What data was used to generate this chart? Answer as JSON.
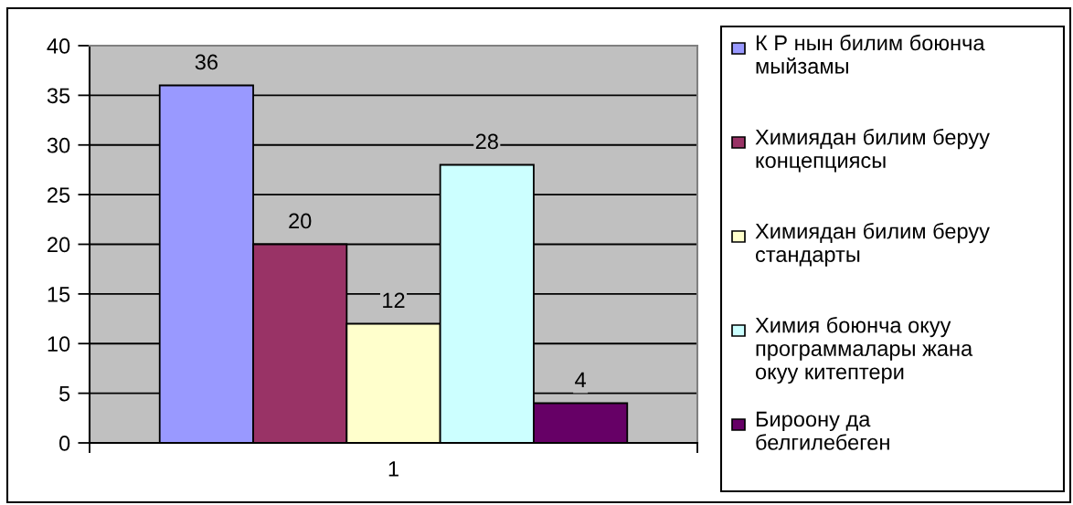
{
  "chart_data": {
    "type": "bar",
    "categories": [
      "1"
    ],
    "series": [
      {
        "name": "К Р нын билим боюнча мыйзамы",
        "color": "#9999ff",
        "values": [
          36
        ]
      },
      {
        "name": "Химиядан билим беруу концепциясы",
        "color": "#993366",
        "values": [
          20
        ]
      },
      {
        "name": "Химиядан билим беруу стандарты",
        "color": "#ffffcc",
        "values": [
          12
        ]
      },
      {
        "name": "Химия боюнча окуу программалары жана окуу китептери",
        "color": "#ccffff",
        "values": [
          28
        ]
      },
      {
        "name": "Бироону да белгилебеген",
        "color": "#660066",
        "values": [
          4
        ]
      }
    ],
    "ylim": [
      0,
      40
    ],
    "yticks": [
      0,
      5,
      10,
      15,
      20,
      25,
      30,
      35,
      40
    ],
    "grid": "y",
    "legend": "right",
    "data_labels": true
  }
}
